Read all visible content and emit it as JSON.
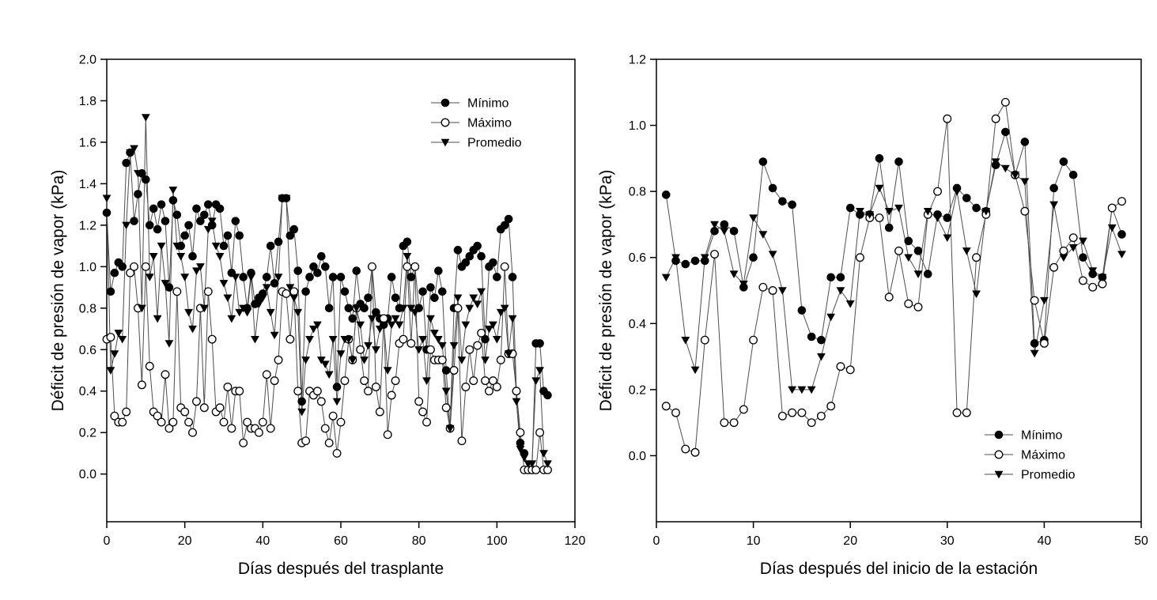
{
  "figure": {
    "background": "#ffffff",
    "marker_color": "#000000",
    "line_color": "#4d4d4d"
  },
  "chart_data": [
    {
      "id": "vpd-dias-trasplante",
      "type": "scatter",
      "connected": true,
      "grid": false,
      "title": "",
      "xlabel": "Días después del trasplante",
      "ylabel": "Déficit de presión de vapor (kPa)",
      "xlim": [
        0,
        120
      ],
      "xticks": [
        "0",
        "20",
        "40",
        "60",
        "80",
        "100",
        "120"
      ],
      "ylim": [
        0.0,
        2.0
      ],
      "yticks": [
        "0.0",
        "0.2",
        "0.4",
        "0.6",
        "0.8",
        "1.0",
        "1.2",
        "1.4",
        "1.6",
        "1.8",
        "2.0"
      ],
      "legend": {
        "position": "top-right",
        "entries": [
          "Mínimo",
          "Máximo",
          "Promedio"
        ]
      },
      "series": [
        {
          "name": "Mínimo",
          "marker": "filled-circle",
          "x_start": 0,
          "y": [
            1.26,
            0.88,
            0.97,
            1.02,
            1.0,
            1.5,
            1.55,
            1.22,
            1.35,
            1.45,
            1.42,
            1.2,
            1.28,
            1.18,
            1.3,
            1.22,
            0.9,
            1.32,
            1.25,
            1.1,
            1.15,
            1.2,
            1.05,
            1.28,
            1.22,
            1.25,
            1.3,
            1.2,
            1.3,
            1.28,
            1.1,
            1.15,
            0.97,
            1.22,
            1.15,
            0.95,
            0.8,
            0.97,
            0.82,
            0.85,
            0.87,
            0.95,
            1.1,
            0.92,
            1.12,
            1.33,
            1.33,
            1.15,
            1.18,
            0.98,
            0.35,
            0.88,
            0.95,
            1.0,
            0.97,
            1.05,
            1.0,
            0.8,
            0.95,
            0.42,
            0.95,
            0.88,
            0.8,
            0.75,
            0.98,
            0.82,
            0.8,
            0.85,
            1.0,
            0.78,
            0.75,
            0.72,
            0.75,
            0.95,
            0.85,
            0.8,
            1.1,
            1.12,
            0.95,
            1.0,
            0.8,
            0.88,
            0.6,
            0.9,
            0.85,
            0.98,
            0.88,
            0.5,
            0.22,
            0.8,
            1.08,
            1.0,
            1.02,
            1.05,
            1.08,
            1.1,
            1.05,
            0.65,
            1.0,
            1.02,
            0.95,
            1.18,
            1.2,
            1.23,
            0.95,
            0.4,
            0.15,
            0.1,
            0.02,
            0.02,
            0.63,
            0.63,
            0.4,
            0.38
          ]
        },
        {
          "name": "Máximo",
          "marker": "open-circle",
          "x_start": 0,
          "y": [
            0.65,
            0.66,
            0.28,
            0.25,
            0.25,
            0.3,
            0.97,
            1.0,
            0.8,
            0.43,
            1.0,
            0.52,
            0.3,
            0.28,
            0.25,
            0.48,
            0.22,
            0.25,
            0.88,
            0.32,
            0.3,
            0.25,
            0.2,
            0.35,
            0.8,
            0.32,
            0.88,
            0.65,
            0.3,
            0.32,
            0.25,
            0.42,
            0.22,
            0.4,
            0.4,
            0.15,
            0.25,
            0.22,
            0.22,
            0.2,
            0.25,
            0.48,
            0.22,
            0.45,
            0.55,
            0.88,
            0.87,
            0.65,
            0.88,
            0.4,
            0.15,
            0.16,
            0.4,
            0.38,
            0.4,
            0.35,
            0.22,
            0.15,
            0.28,
            0.1,
            0.25,
            0.45,
            0.65,
            0.55,
            0.8,
            0.6,
            0.45,
            0.4,
            1.0,
            0.42,
            0.3,
            0.75,
            0.19,
            0.38,
            0.45,
            0.63,
            0.65,
            1.0,
            0.63,
            1.0,
            0.35,
            0.3,
            0.25,
            0.6,
            0.55,
            0.55,
            0.55,
            0.32,
            0.22,
            0.5,
            0.8,
            0.16,
            0.42,
            0.6,
            0.45,
            0.62,
            0.68,
            0.45,
            0.4,
            0.45,
            0.42,
            0.55,
            1.0,
            0.58,
            0.58,
            0.4,
            0.2,
            0.02,
            0.02,
            0.02,
            0.02,
            0.2,
            0.02,
            0.02
          ]
        },
        {
          "name": "Promedio",
          "marker": "filled-triangle-down",
          "x_start": 0,
          "y": [
            1.33,
            0.5,
            0.58,
            0.68,
            0.65,
            1.2,
            1.55,
            1.57,
            1.45,
            0.8,
            1.72,
            0.95,
            1.05,
            0.75,
            1.1,
            0.92,
            0.63,
            1.37,
            1.1,
            1.05,
            0.95,
            0.78,
            0.7,
            0.98,
            1.0,
            0.8,
            1.18,
            1.22,
            1.1,
            1.05,
            0.92,
            0.85,
            0.75,
            0.95,
            0.78,
            0.8,
            0.78,
            0.95,
            0.65,
            0.82,
            0.85,
            0.9,
            0.78,
            0.67,
            0.95,
            1.33,
            1.33,
            0.9,
            0.85,
            0.78,
            0.3,
            0.55,
            0.65,
            0.7,
            0.72,
            0.55,
            0.53,
            0.48,
            0.65,
            0.35,
            0.58,
            0.65,
            0.65,
            0.55,
            0.8,
            0.72,
            0.55,
            0.62,
            0.75,
            0.6,
            0.7,
            0.72,
            0.5,
            0.72,
            0.75,
            0.72,
            0.8,
            1.05,
            0.8,
            0.78,
            0.6,
            0.65,
            0.45,
            0.75,
            0.68,
            0.65,
            0.62,
            0.4,
            0.22,
            0.62,
            0.85,
            0.55,
            0.72,
            0.8,
            0.85,
            0.82,
            0.88,
            0.55,
            0.7,
            0.72,
            0.65,
            0.78,
            0.8,
            0.58,
            0.75,
            0.35,
            0.12,
            0.08,
            0.05,
            0.05,
            0.45,
            0.5,
            0.1,
            0.05
          ]
        }
      ]
    },
    {
      "id": "vpd-dias-estacion",
      "type": "scatter",
      "connected": true,
      "grid": false,
      "title": "",
      "xlabel": "Días después del inicio de la estación",
      "ylabel": "Déficit de presión de vapor (kPa)",
      "xlim": [
        0,
        50
      ],
      "xticks": [
        "0",
        "10",
        "20",
        "30",
        "40",
        "50"
      ],
      "ylim": [
        0.0,
        1.2
      ],
      "yticks": [
        "0.0",
        "0.2",
        "0.4",
        "0.6",
        "0.8",
        "1.0",
        "1.2"
      ],
      "legend": {
        "position": "bottom-right",
        "entries": [
          "Mínimo",
          "Máximo",
          "Promedio"
        ]
      },
      "series": [
        {
          "name": "Mínimo",
          "marker": "filled-circle",
          "x_start": 1,
          "y": [
            0.79,
            0.59,
            0.58,
            0.59,
            0.59,
            0.68,
            0.7,
            0.68,
            0.51,
            0.6,
            0.89,
            0.81,
            0.77,
            0.76,
            0.44,
            0.36,
            0.35,
            0.54,
            0.54,
            0.75,
            0.73,
            0.73,
            0.9,
            0.69,
            0.89,
            0.65,
            0.62,
            0.55,
            0.73,
            0.72,
            0.81,
            0.78,
            0.75,
            0.74,
            0.88,
            0.98,
            0.85,
            0.95,
            0.34,
            0.35,
            0.81,
            0.89,
            0.85,
            0.6,
            0.55,
            0.54,
            0.75,
            0.67
          ]
        },
        {
          "name": "Máximo",
          "marker": "open-circle",
          "x_start": 1,
          "y": [
            0.15,
            0.13,
            0.02,
            0.01,
            0.35,
            0.61,
            0.1,
            0.1,
            0.14,
            0.35,
            0.51,
            0.5,
            0.12,
            0.13,
            0.13,
            0.1,
            0.12,
            0.15,
            0.27,
            0.26,
            0.6,
            0.72,
            0.72,
            0.48,
            0.62,
            0.46,
            0.45,
            0.73,
            0.8,
            1.02,
            0.13,
            0.13,
            0.6,
            0.73,
            1.02,
            1.07,
            0.85,
            0.74,
            0.47,
            0.34,
            0.57,
            0.62,
            0.66,
            0.53,
            0.51,
            0.52,
            0.75,
            0.77
          ]
        },
        {
          "name": "Promedio",
          "marker": "filled-triangle-down",
          "x_start": 1,
          "y": [
            0.54,
            0.6,
            0.35,
            0.26,
            0.6,
            0.7,
            0.68,
            0.55,
            0.52,
            0.72,
            0.67,
            0.61,
            0.5,
            0.2,
            0.2,
            0.2,
            0.3,
            0.42,
            0.5,
            0.46,
            0.74,
            0.73,
            0.81,
            0.74,
            0.75,
            0.6,
            0.55,
            0.74,
            0.72,
            0.66,
            0.8,
            0.62,
            0.49,
            0.74,
            0.89,
            0.87,
            0.85,
            0.83,
            0.31,
            0.47,
            0.76,
            0.6,
            0.63,
            0.65,
            0.56,
            0.54,
            0.69,
            0.61
          ]
        }
      ]
    }
  ]
}
